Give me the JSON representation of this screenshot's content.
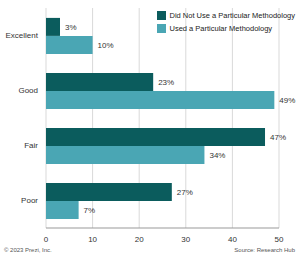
{
  "chart_data": {
    "type": "bar",
    "orientation": "horizontal",
    "categories": [
      "Excellent",
      "Good",
      "Fair",
      "Poor"
    ],
    "series": [
      {
        "name": "Did Not Use a Particular Methodology",
        "color": "#0b5c5d",
        "values": [
          3,
          23,
          47,
          27
        ],
        "value_labels": [
          "3%",
          "23%",
          "47%",
          "27%"
        ]
      },
      {
        "name": "Used a Particular Methodology",
        "color": "#4aa6b4",
        "values": [
          10,
          49,
          34,
          7
        ],
        "value_labels": [
          "10%",
          "49%",
          "34%",
          "7%"
        ]
      }
    ],
    "xlim": [
      0,
      50
    ],
    "xticks": [
      0,
      10,
      20,
      30,
      40,
      50
    ],
    "grid": true,
    "legend": "top right",
    "data_labels": true,
    "annotations": [
      "© 2023 Prezi, Inc.",
      "Source: Research Hub"
    ]
  }
}
